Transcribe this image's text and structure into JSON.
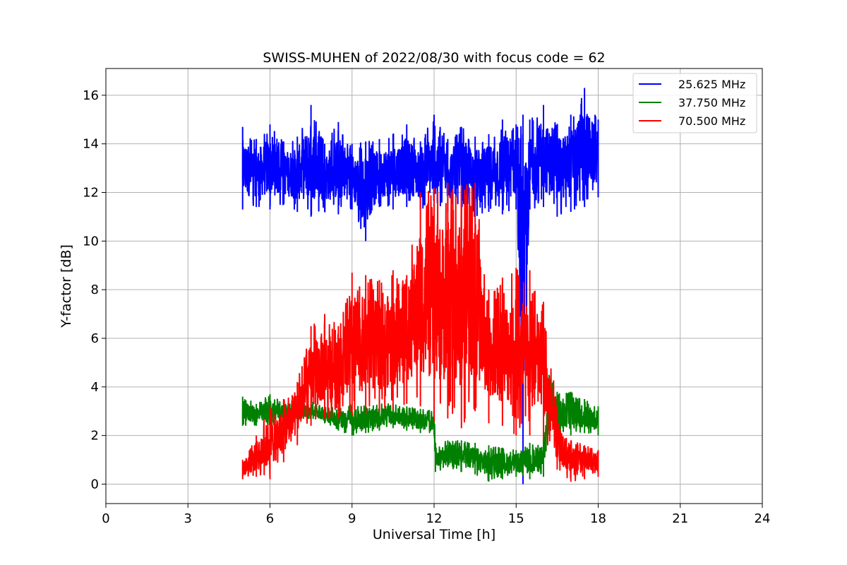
{
  "chart_data": {
    "type": "line",
    "title": "SWISS-MUHEN of 2022/08/30 with focus code = 62",
    "xlabel": "Universal Time [h]",
    "ylabel": "Y-factor [dB]",
    "xlim": [
      0,
      24
    ],
    "ylim": [
      -0.8,
      17.1
    ],
    "xticks": [
      0,
      3,
      6,
      9,
      12,
      15,
      18,
      21,
      24
    ],
    "yticks": [
      0,
      2,
      4,
      6,
      8,
      10,
      12,
      14,
      16
    ],
    "grid": true,
    "legend_position": "top-right",
    "series": [
      {
        "name": "25.625 MHz",
        "color": "#0000ff",
        "x": [
          5.0,
          5.5,
          6.0,
          6.5,
          7.0,
          7.5,
          8.0,
          8.5,
          9.0,
          9.5,
          10.0,
          10.5,
          11.0,
          11.5,
          12.0,
          12.5,
          13.0,
          13.5,
          14.0,
          14.5,
          15.0,
          15.25,
          15.5,
          16.0,
          16.5,
          17.0,
          17.5,
          18.0
        ],
        "low": [
          11.3,
          11.4,
          11.3,
          11.5,
          11.2,
          11.0,
          11.2,
          11.1,
          11.3,
          10.0,
          11.4,
          11.3,
          11.4,
          11.3,
          11.3,
          11.2,
          11.3,
          11.0,
          11.2,
          11.1,
          11.3,
          0.0,
          11.3,
          11.4,
          11.0,
          11.2,
          11.4,
          11.8
        ],
        "high": [
          14.7,
          14.2,
          14.8,
          14.1,
          14.3,
          15.6,
          14.0,
          14.9,
          14.0,
          14.1,
          14.2,
          14.4,
          14.8,
          14.1,
          15.2,
          14.2,
          14.7,
          14.3,
          14.4,
          15.0,
          14.8,
          15.2,
          15.0,
          15.6,
          14.8,
          15.2,
          16.3,
          15.0
        ]
      },
      {
        "name": "37.750 MHz",
        "color": "#008000",
        "x": [
          5.0,
          5.5,
          6.0,
          6.5,
          7.0,
          7.5,
          8.0,
          8.5,
          9.0,
          9.5,
          10.0,
          10.5,
          11.0,
          11.5,
          12.0,
          12.05,
          12.5,
          13.0,
          13.5,
          14.0,
          14.5,
          15.0,
          15.5,
          16.0,
          16.2,
          16.5,
          17.0,
          17.5,
          18.0
        ],
        "low": [
          2.4,
          2.4,
          2.3,
          2.5,
          2.6,
          2.7,
          2.5,
          2.2,
          2.0,
          2.1,
          2.2,
          2.3,
          2.2,
          2.1,
          2.0,
          0.5,
          0.7,
          0.5,
          0.4,
          0.1,
          0.2,
          0.3,
          0.2,
          0.3,
          2.2,
          2.0,
          2.0,
          2.1,
          2.0
        ],
        "high": [
          3.6,
          3.3,
          3.7,
          3.4,
          3.2,
          3.4,
          3.2,
          3.1,
          3.3,
          3.2,
          3.3,
          3.3,
          3.2,
          3.1,
          3.0,
          1.7,
          1.8,
          1.8,
          1.7,
          1.6,
          1.5,
          1.4,
          1.7,
          1.8,
          4.5,
          3.8,
          3.8,
          3.5,
          3.2
        ]
      },
      {
        "name": "70.500 MHz",
        "color": "#ff0000",
        "x": [
          5.0,
          5.5,
          6.0,
          6.5,
          7.0,
          7.5,
          8.0,
          8.5,
          9.0,
          9.5,
          10.0,
          10.5,
          11.0,
          11.5,
          12.0,
          12.5,
          13.0,
          13.5,
          14.0,
          14.5,
          15.0,
          15.5,
          16.0,
          16.5,
          17.0,
          17.5,
          18.0
        ],
        "low": [
          0.2,
          0.3,
          0.2,
          0.9,
          1.6,
          2.4,
          2.7,
          2.7,
          2.8,
          2.9,
          3.0,
          3.1,
          3.3,
          3.2,
          2.6,
          2.7,
          2.3,
          3.0,
          2.5,
          2.4,
          2.0,
          2.0,
          1.8,
          0.6,
          0.1,
          0.2,
          0.3
        ],
        "high": [
          1.0,
          2.0,
          3.2,
          3.5,
          4.2,
          6.5,
          7.0,
          6.5,
          8.7,
          8.6,
          8.4,
          8.8,
          8.6,
          12.0,
          12.2,
          12.4,
          12.3,
          12.4,
          8.0,
          8.5,
          8.9,
          8.8,
          7.5,
          3.2,
          1.8,
          1.6,
          1.4
        ]
      }
    ]
  }
}
